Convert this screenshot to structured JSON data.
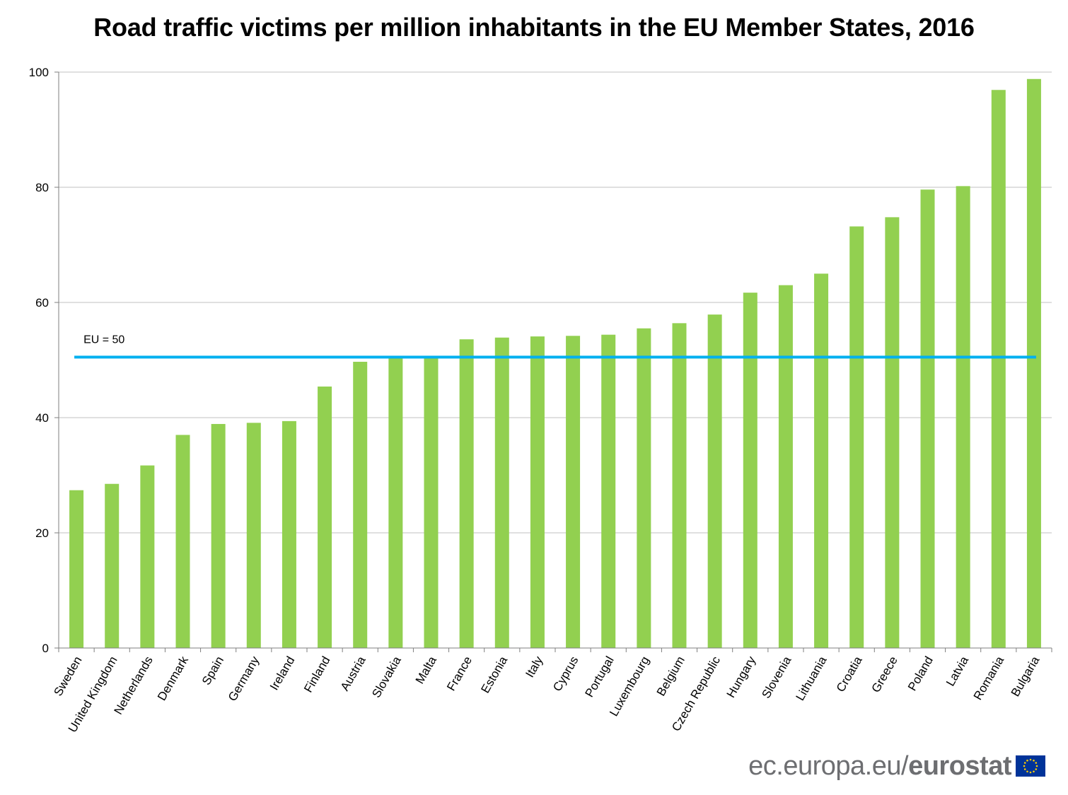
{
  "chart_data": {
    "type": "bar",
    "title": "Road traffic victims per million inhabitants in the EU Member States, 2016",
    "xlabel": "",
    "ylabel": "",
    "ylim": [
      0,
      100
    ],
    "yticks": [
      0,
      20,
      40,
      60,
      80,
      100
    ],
    "grid": true,
    "categories": [
      "Sweden",
      "United Kingdom",
      "Netherlands",
      "Denmark",
      "Spain",
      "Germany",
      "Ireland",
      "Finland",
      "Austria",
      "Slovakia",
      "Malta",
      "France",
      "Estonia",
      "Italy",
      "Cyprus",
      "Portugal",
      "Luxembourg",
      "Belgium",
      "Czech Republic",
      "Hungary",
      "Slovenia",
      "Lithuania",
      "Croatia",
      "Greece",
      "Poland",
      "Latvia",
      "Romania",
      "Bulgaria"
    ],
    "values": [
      27.4,
      28.5,
      31.7,
      37,
      38.9,
      39.1,
      39.4,
      45.4,
      49.7,
      50.6,
      50.5,
      53.6,
      53.9,
      54.1,
      54.2,
      54.4,
      55.5,
      56.4,
      57.9,
      61.7,
      63,
      65,
      73.2,
      74.8,
      79.6,
      80.2,
      96.9,
      98.8
    ],
    "reference_line": {
      "label": "EU = 50",
      "value": 50.5
    },
    "colors": {
      "bar": "#92d050",
      "reference_line": "#00b0f0",
      "grid": "#c0c0c0"
    }
  },
  "footer": {
    "url_text": "ec.europa.eu/",
    "brand_text": "eurostat",
    "logo_icon": "eu-flag-icon"
  }
}
